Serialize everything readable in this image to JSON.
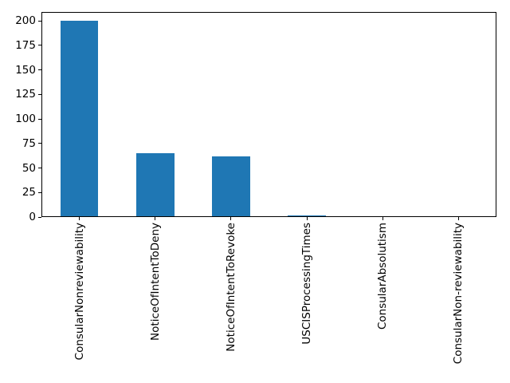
{
  "figure": {
    "background_color": "#ffffff",
    "bar_color": "#1f77b4",
    "axis_color": "#000000",
    "text_color": "#000000"
  },
  "chart_data": {
    "type": "bar",
    "title": "",
    "xlabel": "",
    "ylabel": "",
    "categories": [
      "ConsularNonreviewability",
      "NoticeOfIntentToDeny",
      "NoticeOfIntentToRevoke",
      "USCISProcessingTimes",
      "ConsularAbsolutism",
      "ConsularNon-reviewability"
    ],
    "values": [
      199,
      64,
      61,
      1,
      0,
      0
    ],
    "yticks": [
      0,
      25,
      50,
      75,
      100,
      125,
      150,
      175,
      200
    ],
    "ylim": [
      0,
      209
    ],
    "xtick_rotation": 90,
    "bar_width_fraction": 0.5,
    "grid": false,
    "legend": "none"
  }
}
